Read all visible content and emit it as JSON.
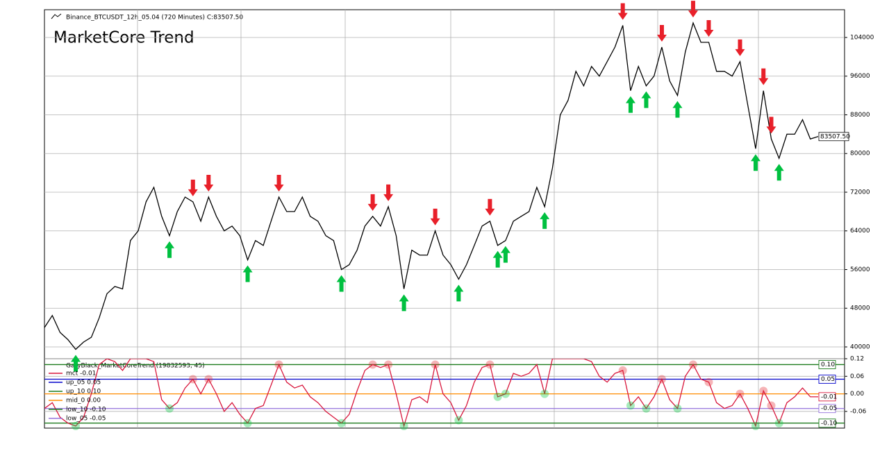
{
  "chart_data": [
    {
      "type": "line",
      "title": "MarketCore Trend",
      "series": [
        {
          "name": "Binance_BTCUSDT_12h_05.04 (720 Minutes) C:83507.50",
          "color": "#000000",
          "last_label": "83507.50",
          "values": [
            44000,
            46500,
            43000,
            41500,
            39500,
            41000,
            42000,
            46000,
            51000,
            52500,
            52000,
            62000,
            64000,
            70000,
            73000,
            67000,
            63000,
            68000,
            71000,
            70000,
            66000,
            71000,
            67000,
            64000,
            65000,
            63000,
            58000,
            62000,
            61000,
            66000,
            71000,
            68000,
            68000,
            71000,
            67000,
            66000,
            63000,
            62000,
            56000,
            57000,
            60000,
            65000,
            67000,
            65000,
            69000,
            63000,
            52000,
            60000,
            59000,
            59000,
            64000,
            59000,
            57000,
            54000,
            57000,
            61000,
            65000,
            66000,
            61000,
            62000,
            66000,
            67000,
            68000,
            73000,
            69000,
            77000,
            88000,
            91000,
            97000,
            94000,
            98000,
            96000,
            99000,
            102000,
            106500,
            93000,
            98000,
            94000,
            96000,
            102000,
            95000,
            92000,
            101000,
            107000,
            103000,
            103000,
            97000,
            97000,
            96000,
            99000,
            90000,
            81000,
            93000,
            83000,
            79000,
            84000,
            84000,
            87000,
            83000,
            83507.5
          ]
        }
      ],
      "buy_signals": {
        "color": "#00c040",
        "x": [
          4,
          16,
          26,
          38,
          46,
          53,
          58,
          59,
          64,
          75,
          77,
          81,
          91,
          94
        ],
        "values": [
          39500,
          63000,
          58000,
          56000,
          52000,
          54000,
          61000,
          62000,
          69000,
          93000,
          94000,
          92000,
          81000,
          79000
        ]
      },
      "sell_signals": {
        "color": "#e8202a",
        "x": [
          19,
          21,
          30,
          42,
          44,
          50,
          57,
          74,
          79,
          83,
          85,
          89,
          92,
          93
        ],
        "values": [
          70000,
          71000,
          71000,
          67000,
          69000,
          64000,
          66000,
          106500,
          102000,
          107000,
          103000,
          99000,
          93000,
          83000
        ]
      },
      "ylim": [
        37560,
        109740
      ],
      "yticks": [
        40000,
        48000,
        56000,
        64000,
        72000,
        80000,
        88000,
        96000,
        104000
      ],
      "grid": true
    },
    {
      "type": "line",
      "title": "GaryBlack_MarketCoreTrend (19832593, 45)",
      "series": [
        {
          "name": "mct -0.01",
          "color": "#d8163c",
          "value_label": "-0.01",
          "values": [
            -0.05,
            -0.03,
            -0.08,
            -0.1,
            -0.11,
            -0.08,
            0.0,
            0.1,
            0.12,
            0.11,
            0.08,
            0.12,
            0.12,
            0.12,
            0.11,
            -0.02,
            -0.05,
            -0.03,
            0.02,
            0.05,
            0.0,
            0.05,
            0.0,
            -0.06,
            -0.03,
            -0.07,
            -0.1,
            -0.05,
            -0.04,
            0.03,
            0.1,
            0.04,
            0.02,
            0.03,
            -0.01,
            -0.03,
            -0.06,
            -0.08,
            -0.1,
            -0.07,
            0.01,
            0.08,
            0.1,
            0.09,
            0.1,
            0.0,
            -0.11,
            -0.02,
            -0.01,
            -0.03,
            0.1,
            0.0,
            -0.03,
            -0.09,
            -0.04,
            0.04,
            0.09,
            0.1,
            -0.01,
            0.0,
            0.07,
            0.06,
            0.07,
            0.1,
            0.0,
            0.12,
            0.12,
            0.12,
            0.12,
            0.12,
            0.11,
            0.06,
            0.04,
            0.07,
            0.08,
            -0.04,
            -0.01,
            -0.05,
            -0.01,
            0.05,
            -0.02,
            -0.05,
            0.06,
            0.1,
            0.05,
            0.04,
            -0.03,
            -0.05,
            -0.04,
            0.0,
            -0.05,
            -0.11,
            0.01,
            -0.04,
            -0.1,
            -0.03,
            -0.01,
            0.02,
            -0.01,
            -0.01
          ]
        }
      ],
      "levels": [
        {
          "name": "up_05 0.05",
          "value": 0.05,
          "color": "#0000cc",
          "value_label": "0.05"
        },
        {
          "name": "up_10 0.10",
          "value": 0.1,
          "color": "#1a7a1a",
          "value_label": "0.10"
        },
        {
          "name": "mid_0 0.00",
          "value": 0,
          "color": "#ff8c00"
        },
        {
          "name": "low_10 -0.10",
          "value": -0.1,
          "color": "#1a7a1a",
          "value_label": "-0.10"
        },
        {
          "name": "low_05 -0.05",
          "value": -0.05,
          "color": "#9370db",
          "value_label": "-0.05"
        }
      ],
      "ylim": [
        -0.117,
        0.12
      ],
      "yticks": [
        0.12,
        0.06,
        {
          "value": 0,
          "label": "0.00"
        },
        -0.06
      ],
      "grid": true
    }
  ]
}
